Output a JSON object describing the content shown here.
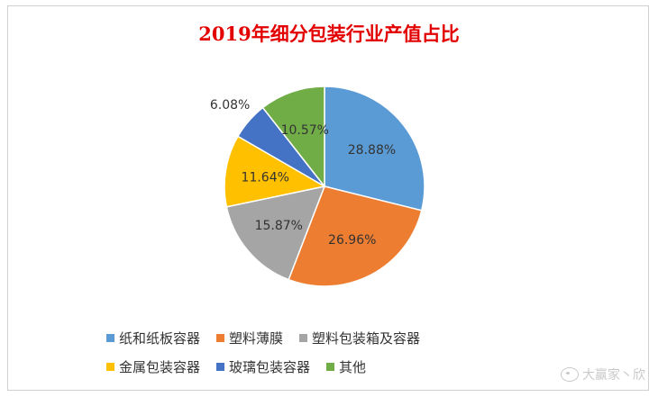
{
  "chart_data": {
    "type": "pie",
    "title": "2019年细分包装行业产值占比",
    "labels": [
      "纸和纸板容器",
      "塑料薄膜",
      "塑料包装箱及容器",
      "金属包装容器",
      "玻璃包装容器",
      "其他"
    ],
    "values": [
      28.88,
      26.96,
      15.87,
      11.64,
      6.08,
      10.57
    ],
    "data_labels": [
      "28.88%",
      "26.96%",
      "15.87%",
      "11.64%",
      "6.08%",
      "10.57%"
    ],
    "colors": [
      "#5b9bd5",
      "#ed7d31",
      "#a5a5a5",
      "#ffc000",
      "#4472c4",
      "#70ad47"
    ],
    "legend_placement": "bottom"
  },
  "legend_rows": [
    [
      {
        "label": "纸和纸板容器",
        "color": "#5b9bd5"
      },
      {
        "label": "塑料薄膜",
        "color": "#ed7d31"
      },
      {
        "label": "塑料包装箱及容器",
        "color": "#a5a5a5"
      }
    ],
    [
      {
        "label": "金属包装容器",
        "color": "#ffc000"
      },
      {
        "label": "玻璃包装容器",
        "color": "#4472c4"
      },
      {
        "label": "其他",
        "color": "#70ad47"
      }
    ]
  ],
  "watermark": {
    "text": "大赢家丶欣",
    "icon": "weibo-icon"
  }
}
